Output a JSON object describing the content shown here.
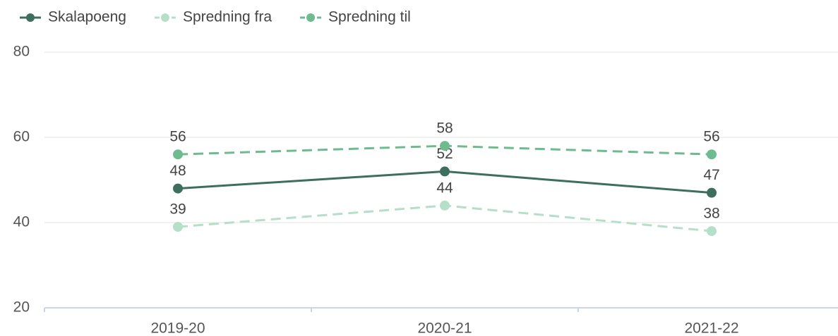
{
  "chart_data": {
    "type": "line",
    "categories": [
      "2019-20",
      "2020-21",
      "2021-22"
    ],
    "series": [
      {
        "name": "Skalapoeng",
        "color": "#3d6e5e",
        "dashed": false,
        "values": [
          48,
          52,
          47
        ]
      },
      {
        "name": "Spredning fra",
        "color": "#b5dfc9",
        "dashed": true,
        "values": [
          39,
          44,
          38
        ]
      },
      {
        "name": "Spredning til",
        "color": "#6dbb8f",
        "dashed": true,
        "values": [
          56,
          58,
          56
        ]
      }
    ],
    "ylim": [
      20,
      80
    ],
    "yticks": [
      20,
      40,
      60,
      80
    ],
    "grid": true,
    "legend": "top-left"
  }
}
